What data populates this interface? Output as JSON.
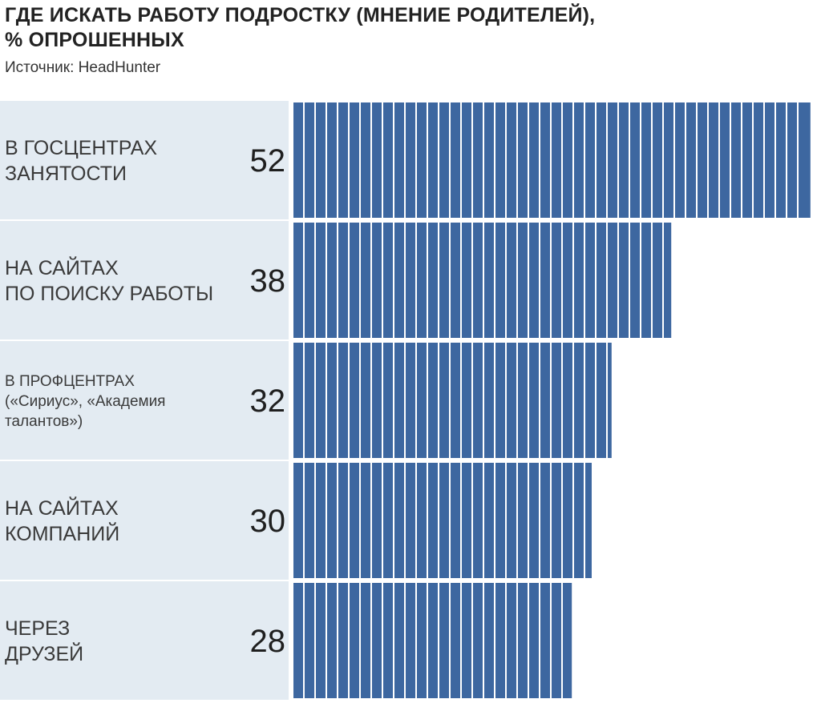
{
  "header": {
    "title_line1": "ГДЕ ИСКАТЬ РАБОТУ ПОДРОСТКУ (МНЕНИЕ РОДИТЕЛЕЙ),",
    "title_line2": "% ОПРОШЕННЫХ",
    "source": "Источник: HeadHunter"
  },
  "chart_data": {
    "type": "bar",
    "orientation": "horizontal",
    "title": "ГДЕ ИСКАТЬ РАБОТУ ПОДРОСТКУ (МНЕНИЕ РОДИТЕЛЕЙ), % ОПРОШЕННЫХ",
    "categories": [
      {
        "lines": [
          "В ГОСЦЕНТРАХ",
          "ЗАНЯТОСТИ"
        ],
        "small": false
      },
      {
        "lines": [
          "НА САЙТАХ",
          "ПО ПОИСКУ РАБОТЫ"
        ],
        "small": false
      },
      {
        "lines": [
          "В ПРОФЦЕНТРАХ",
          "(«Сириус», «Академия",
          "талантов»)"
        ],
        "small": true
      },
      {
        "lines": [
          "НА САЙТАХ",
          "КОМПАНИЙ"
        ],
        "small": false
      },
      {
        "lines": [
          "ЧЕРЕЗ",
          "ДРУЗЕЙ"
        ],
        "small": false
      }
    ],
    "values": [
      52,
      38,
      32,
      30,
      28
    ],
    "unit": "%",
    "grid": false,
    "legend": "none",
    "colors": {
      "bar": "#3d67a0",
      "bar_divider": "#ffffff",
      "label_band": "#e3ebf2"
    }
  }
}
